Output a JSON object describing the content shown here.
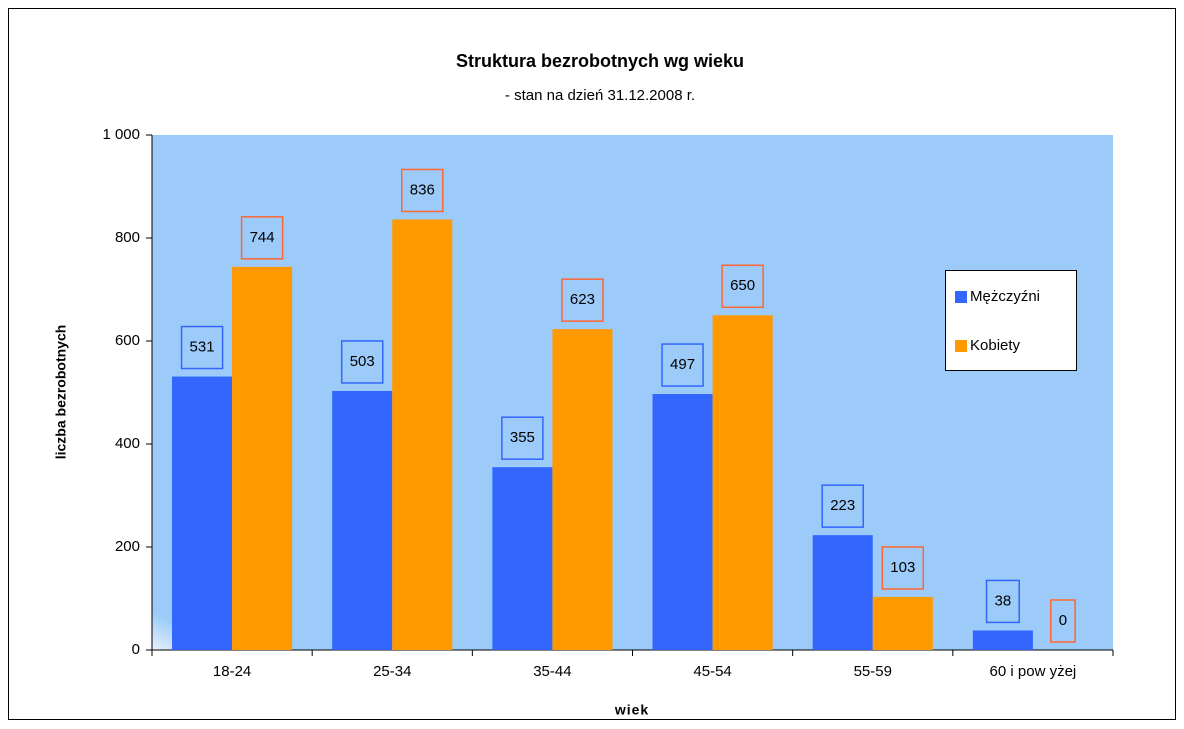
{
  "chart_data": {
    "type": "bar",
    "title": "Struktura bezrobotnych wg wieku",
    "subtitle": "- stan na dzień 31.12.2008 r.",
    "x_label": "wiek",
    "y_label": "liczba bezrobotnych",
    "categories": [
      "18-24",
      "25-34",
      "35-44",
      "45-54",
      "55-59",
      "60 i pow yżej"
    ],
    "series": [
      {
        "name": "Mężczyźni",
        "color": "#3366ff",
        "label_border": "#3366ff",
        "values": [
          531,
          503,
          355,
          497,
          223,
          38
        ]
      },
      {
        "name": "Kobiety",
        "color": "#ff9900",
        "label_border": "#ff6633",
        "values": [
          744,
          836,
          623,
          650,
          103,
          0
        ]
      }
    ],
    "ylim": [
      0,
      1000
    ],
    "yticks": [
      0,
      200,
      400,
      600,
      800,
      {
        "value": 1000,
        "label": "1 000"
      }
    ],
    "legend": "right"
  }
}
